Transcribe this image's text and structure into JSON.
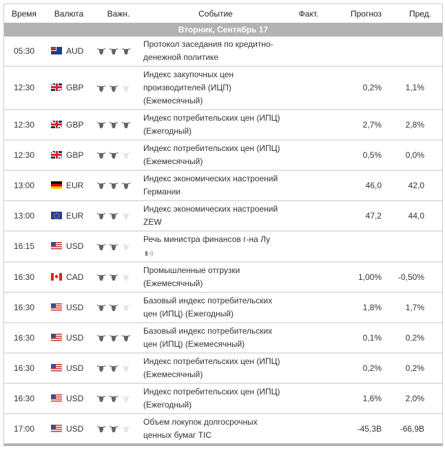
{
  "headers": {
    "time": "Время",
    "currency": "Валюта",
    "importance": "Важн.",
    "event": "Событие",
    "actual": "Факт.",
    "forecast": "Прогноз",
    "previous": "Пред."
  },
  "date_bar": "Вторник, Сентябрь 17",
  "colors": {
    "bull_on": "#666666",
    "bull_off": "#e6e6e6",
    "date_bar": "#b3b3b3"
  },
  "rows": [
    {
      "time": "05:30",
      "currency": "AUD",
      "flag": "AUD",
      "importance": 3,
      "event": "Протокол заседания по кредитно-денежной политике",
      "actual": "",
      "forecast": "",
      "previous": ""
    },
    {
      "time": "12:30",
      "currency": "GBP",
      "flag": "GBP",
      "importance": 2,
      "event": "Индекс закупочных цен производителей (ИЦП) (Ежемесячный)",
      "actual": "",
      "forecast": "0,2%",
      "previous": "1,1%"
    },
    {
      "time": "12:30",
      "currency": "GBP",
      "flag": "GBP",
      "importance": 3,
      "event": "Индекс потребительских цен (ИПЦ) (Ежегодный)",
      "actual": "",
      "forecast": "2,7%",
      "previous": "2,8%"
    },
    {
      "time": "12:30",
      "currency": "GBP",
      "flag": "GBP",
      "importance": 2,
      "event": "Индекс потребительских цен (ИПЦ) (Ежемесячный)",
      "actual": "",
      "forecast": "0,5%",
      "previous": "0,0%"
    },
    {
      "time": "13:00",
      "currency": "EUR",
      "flag": "EURDE",
      "importance": 3,
      "event": "Индекс экономических настроений Германии",
      "actual": "",
      "forecast": "46,0",
      "previous": "42,0"
    },
    {
      "time": "13:00",
      "currency": "EUR",
      "flag": "EUR",
      "importance": 2,
      "event": "Индекс экономических настроений ZEW",
      "actual": "",
      "forecast": "47,2",
      "previous": "44,0"
    },
    {
      "time": "16:15",
      "currency": "USD",
      "flag": "USD",
      "importance": 2,
      "event": "Речь министра финансов г-на Лу",
      "speech": true,
      "actual": "",
      "forecast": "",
      "previous": ""
    },
    {
      "time": "16:30",
      "currency": "CAD",
      "flag": "CAD",
      "importance": 2,
      "event": "Промышленные отгрузки (Ежемесячный)",
      "actual": "",
      "forecast": "1,00%",
      "previous": "-0,50%"
    },
    {
      "time": "16:30",
      "currency": "USD",
      "flag": "USD",
      "importance": 2,
      "event": "Базовый индекс потребительских цен (ИПЦ) (Ежегодный)",
      "actual": "",
      "forecast": "1,8%",
      "previous": "1,7%"
    },
    {
      "time": "16:30",
      "currency": "USD",
      "flag": "USD",
      "importance": 3,
      "event": "Базовый индекс потребительских цен (ИПЦ) (Ежемесячный)",
      "actual": "",
      "forecast": "0,1%",
      "previous": "0,2%"
    },
    {
      "time": "16:30",
      "currency": "USD",
      "flag": "USD",
      "importance": 2,
      "event": "Индекс потребительских цен (ИПЦ) (Ежемесячный)",
      "actual": "",
      "forecast": "0,2%",
      "previous": "0,2%"
    },
    {
      "time": "16:30",
      "currency": "USD",
      "flag": "USD",
      "importance": 2,
      "event": "Индекс потребительских цен (ИПЦ) (Ежегодный)",
      "actual": "",
      "forecast": "1,6%",
      "previous": "2,0%"
    },
    {
      "time": "17:00",
      "currency": "USD",
      "flag": "USD",
      "importance": 2,
      "event": "Объем покупок долгосрочных ценных бумаг TIC",
      "actual": "",
      "forecast": "-45,3B",
      "previous": "-66,9B"
    }
  ]
}
